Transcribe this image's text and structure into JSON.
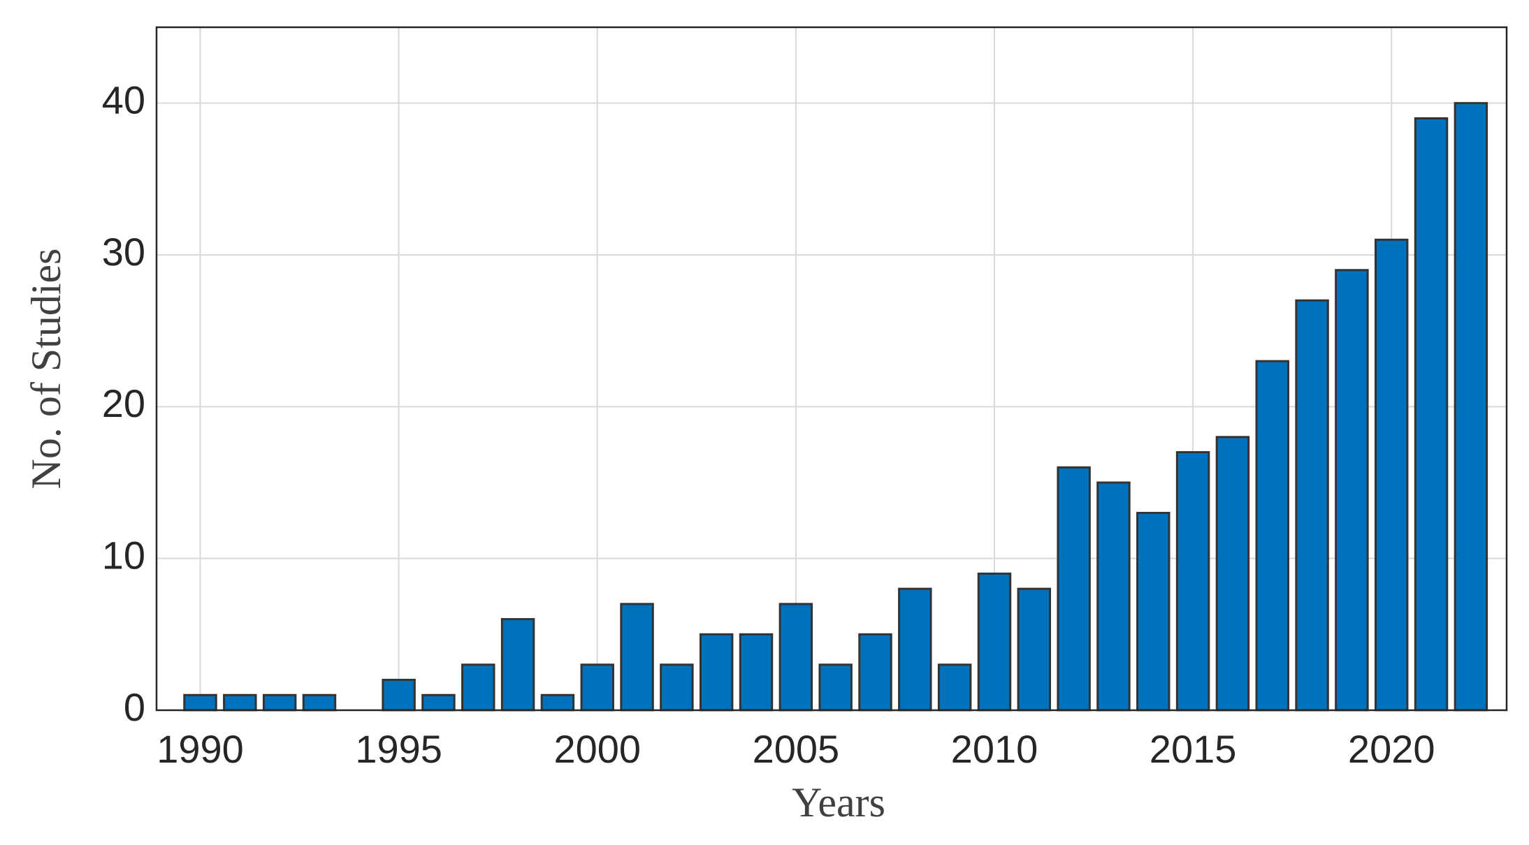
{
  "chart_data": {
    "type": "bar",
    "x": [
      1990,
      1991,
      1992,
      1993,
      1994,
      1995,
      1996,
      1997,
      1998,
      1999,
      2000,
      2001,
      2002,
      2003,
      2004,
      2005,
      2006,
      2007,
      2008,
      2009,
      2010,
      2011,
      2012,
      2013,
      2014,
      2015,
      2016,
      2017,
      2018,
      2019,
      2020,
      2021,
      2022
    ],
    "values": [
      1,
      1,
      1,
      1,
      0,
      2,
      1,
      3,
      6,
      1,
      3,
      7,
      3,
      5,
      5,
      7,
      3,
      5,
      8,
      3,
      9,
      8,
      16,
      15,
      13,
      17,
      18,
      23,
      27,
      29,
      31,
      39,
      40
    ],
    "color": "#0072bd",
    "xlabel": "Years",
    "ylabel": "No. of Studies",
    "xlim": [
      1988.9,
      2022.9
    ],
    "xticks": [
      1990,
      1995,
      2000,
      2005,
      2010,
      2015,
      2020
    ],
    "ylim": [
      0,
      45
    ],
    "yticks": [
      0,
      10,
      20,
      30,
      40
    ],
    "grid": true
  }
}
